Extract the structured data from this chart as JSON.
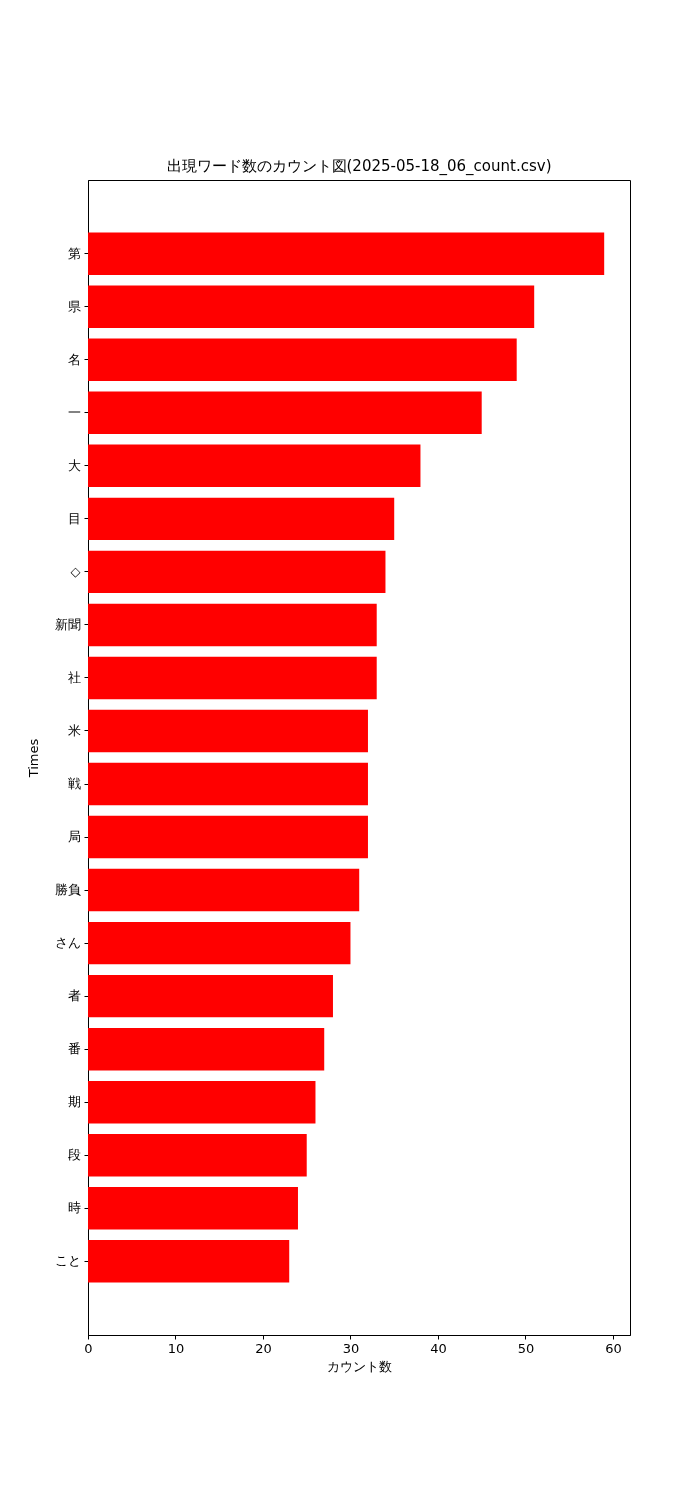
{
  "chart_data": {
    "type": "bar",
    "orientation": "horizontal",
    "title": "出現ワード数のカウント図(2025-05-18_06_count.csv)",
    "xlabel": "カウント数",
    "ylabel": "Times",
    "categories": [
      "第",
      "県",
      "名",
      "一",
      "大",
      "目",
      "◇",
      "新聞",
      "社",
      "米",
      "戦",
      "局",
      "勝負",
      "さん",
      "者",
      "番",
      "期",
      "段",
      "時",
      "こと"
    ],
    "values": [
      59,
      51,
      49,
      45,
      38,
      35,
      34,
      33,
      33,
      32,
      32,
      32,
      31,
      30,
      28,
      27,
      26,
      25,
      24,
      23
    ],
    "color": "#ff0000",
    "xlim": [
      0,
      61.95
    ],
    "xticks": [
      0,
      10,
      20,
      30,
      40,
      50,
      60
    ]
  }
}
